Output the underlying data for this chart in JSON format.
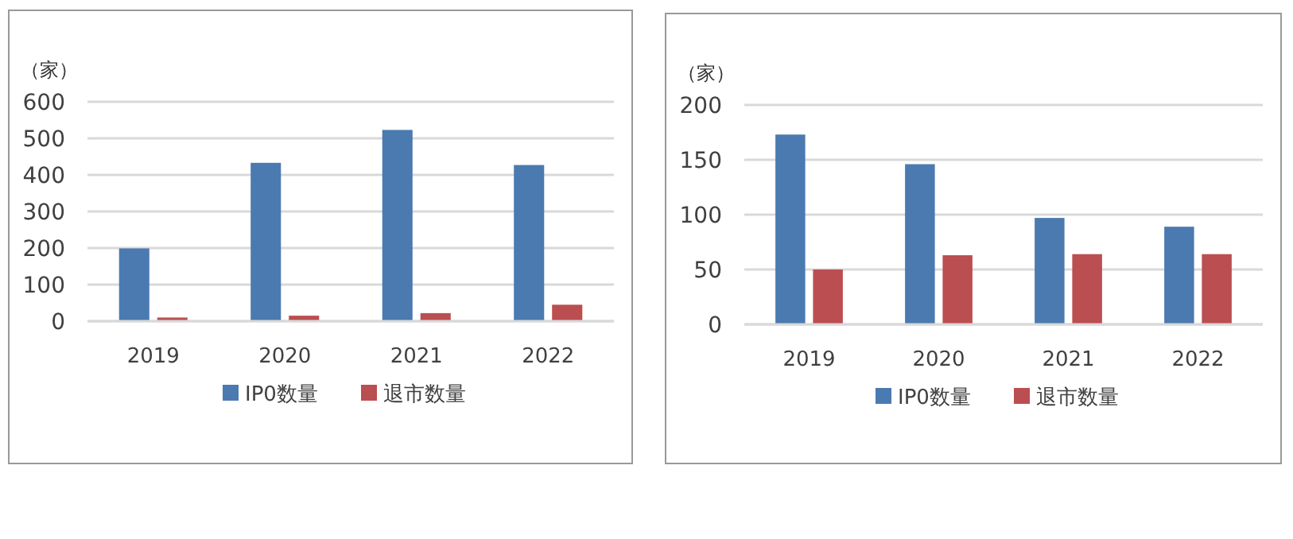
{
  "chart_data": [
    {
      "type": "bar",
      "ylabel": "（家）",
      "categories": [
        "2019",
        "2020",
        "2021",
        "2022"
      ],
      "series": [
        {
          "name": "IP0数量",
          "color": "#4a7ab0",
          "values": [
            199,
            433,
            523,
            427
          ]
        },
        {
          "name": "退市数量",
          "color": "#bb4e50",
          "values": [
            10,
            15,
            22,
            45
          ]
        }
      ],
      "ylim": [
        0,
        600
      ],
      "yticks": [
        0,
        100,
        200,
        300,
        400,
        500,
        600
      ],
      "grid": "y",
      "legend": "bottom"
    },
    {
      "type": "bar",
      "ylabel": "（家）",
      "categories": [
        "2019",
        "2020",
        "2021",
        "2022"
      ],
      "series": [
        {
          "name": "IP0数量",
          "color": "#4a7ab0",
          "values": [
            173,
            146,
            97,
            89
          ]
        },
        {
          "name": "退市数量",
          "color": "#bb4e50",
          "values": [
            50,
            63,
            64,
            64
          ]
        }
      ],
      "ylim": [
        0,
        200
      ],
      "yticks": [
        0,
        50,
        100,
        150,
        200
      ],
      "grid": "y",
      "legend": "bottom"
    }
  ]
}
